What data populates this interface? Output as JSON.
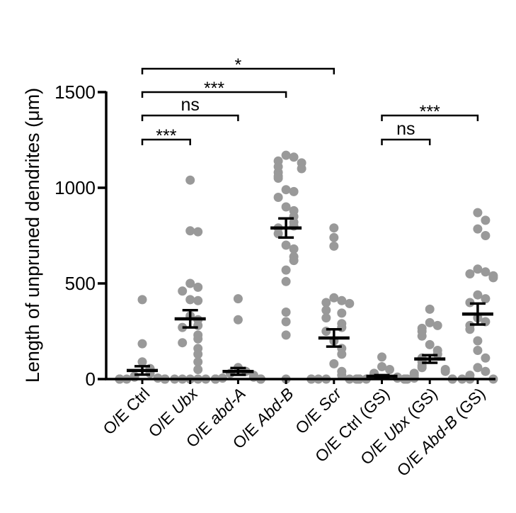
{
  "chart_data": {
    "type": "scatter",
    "subtype": "dot-plot-with-mean-sem",
    "ylabel": "Length of unpruned dendrites (μm)",
    "ylim": [
      0,
      1500
    ],
    "yticks": [
      {
        "value": 0,
        "label": "0"
      },
      {
        "value": 500,
        "label": "500"
      },
      {
        "value": 1000,
        "label": "1000"
      },
      {
        "value": 1500,
        "label": "1500"
      }
    ],
    "grid": false,
    "point_color": "#999999",
    "mark_color": "#000000",
    "categories": [
      {
        "pre": "O/E ",
        "gene": "Ctrl",
        "italic": false,
        "post": ""
      },
      {
        "pre": "O/E ",
        "gene": "Ubx",
        "italic": true,
        "post": ""
      },
      {
        "pre": "O/E ",
        "gene": "abd-A",
        "italic": true,
        "post": ""
      },
      {
        "pre": "O/E ",
        "gene": "Abd-B",
        "italic": true,
        "post": ""
      },
      {
        "pre": "O/E ",
        "gene": "Scr",
        "italic": true,
        "post": ""
      },
      {
        "pre": "O/E ",
        "gene": "Ctrl",
        "italic": false,
        "post": " (GS)"
      },
      {
        "pre": "O/E ",
        "gene": "Ubx",
        "italic": true,
        "post": " (GS)"
      },
      {
        "pre": "O/E ",
        "gene": "Abd-B",
        "italic": true,
        "post": " (GS)"
      }
    ],
    "groups": [
      {
        "mean": 45,
        "sem": 22,
        "points": [
          415,
          185,
          90,
          55,
          30,
          15,
          10,
          5,
          0,
          0,
          0,
          0,
          0,
          0,
          0,
          0,
          0,
          0
        ]
      },
      {
        "mean": 315,
        "sem": 45,
        "points": [
          1040,
          775,
          770,
          500,
          480,
          460,
          415,
          410,
          330,
          310,
          280,
          270,
          230,
          210,
          190,
          160,
          130,
          90,
          50,
          0,
          0,
          0,
          0,
          0
        ]
      },
      {
        "mean": 40,
        "sem": 18,
        "points": [
          420,
          310,
          60,
          40,
          30,
          20,
          10,
          5,
          0,
          0,
          0,
          0,
          0,
          0,
          0,
          0,
          0,
          0
        ]
      },
      {
        "mean": 790,
        "sem": 50,
        "points": [
          1170,
          1160,
          1140,
          1130,
          1110,
          1100,
          1080,
          1060,
          1050,
          990,
          980,
          950,
          900,
          880,
          850,
          820,
          800,
          790,
          760,
          700,
          680,
          640,
          620,
          570,
          510,
          350,
          300,
          230,
          0
        ]
      },
      {
        "mean": 215,
        "sem": 45,
        "points": [
          790,
          740,
          695,
          425,
          410,
          400,
          395,
          360,
          345,
          320,
          290,
          270,
          250,
          200,
          160,
          130,
          80,
          40,
          20,
          0,
          0,
          0,
          0,
          0,
          0,
          0,
          0
        ]
      },
      {
        "mean": 15,
        "sem": 6,
        "points": [
          115,
          65,
          50,
          30,
          20,
          10,
          5,
          0,
          0,
          0,
          0,
          0,
          0,
          0,
          0,
          0
        ]
      },
      {
        "mean": 105,
        "sem": 20,
        "points": [
          365,
          295,
          280,
          265,
          250,
          225,
          180,
          150,
          130,
          110,
          90,
          70,
          60,
          50,
          40,
          30,
          20,
          10,
          5,
          0,
          0,
          0,
          0,
          0,
          0
        ]
      },
      {
        "mean": 340,
        "sem": 55,
        "points": [
          870,
          830,
          785,
          750,
          575,
          560,
          550,
          540,
          530,
          440,
          420,
          400,
          320,
          300,
          280,
          260,
          200,
          150,
          110,
          60,
          40,
          20,
          0,
          0,
          0
        ]
      }
    ],
    "annotations": [
      {
        "from": 0,
        "to": 4,
        "label": "*",
        "level": 4
      },
      {
        "from": 0,
        "to": 3,
        "label": "***",
        "level": 3
      },
      {
        "from": 0,
        "to": 2,
        "label": "ns",
        "level": 2
      },
      {
        "from": 0,
        "to": 1,
        "label": "***",
        "level": 1
      },
      {
        "from": 5,
        "to": 7,
        "label": "***",
        "level": 2
      },
      {
        "from": 5,
        "to": 6,
        "label": "ns",
        "level": 1
      }
    ]
  }
}
